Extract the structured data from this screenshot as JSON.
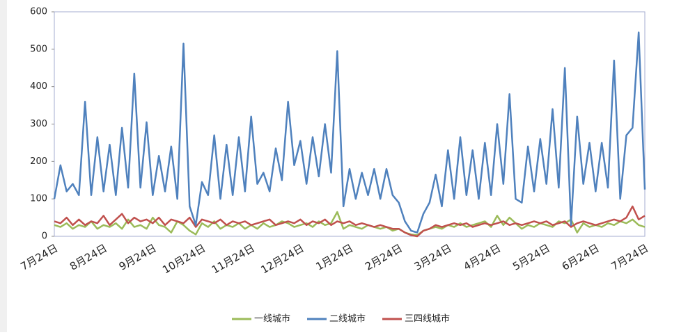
{
  "chart_data": {
    "type": "line",
    "categories": [
      "7月24日",
      null,
      null,
      null,
      null,
      null,
      null,
      null,
      "8月24日",
      null,
      null,
      null,
      null,
      null,
      null,
      null,
      "9月24日",
      null,
      null,
      null,
      null,
      null,
      null,
      null,
      "10月24日",
      null,
      null,
      null,
      null,
      null,
      null,
      null,
      "11月24日",
      null,
      null,
      null,
      null,
      null,
      null,
      null,
      "12月24日",
      null,
      null,
      null,
      null,
      null,
      null,
      null,
      "1月24日",
      null,
      null,
      null,
      null,
      null,
      null,
      null,
      "2月24日",
      null,
      null,
      null,
      null,
      null,
      null,
      null,
      "3月24日",
      null,
      null,
      null,
      null,
      null,
      null,
      null,
      "4月24日",
      null,
      null,
      null,
      null,
      null,
      null,
      null,
      "5月24日",
      null,
      null,
      null,
      null,
      null,
      null,
      null,
      "6月24日",
      null,
      null,
      null,
      null,
      null,
      null,
      null,
      "7月24日"
    ],
    "series": [
      {
        "name": "一线城市",
        "color": "#9bbb59",
        "values": [
          30,
          25,
          35,
          20,
          30,
          25,
          40,
          20,
          30,
          25,
          35,
          20,
          45,
          25,
          30,
          20,
          50,
          30,
          25,
          10,
          40,
          30,
          15,
          5,
          35,
          25,
          40,
          20,
          30,
          25,
          35,
          20,
          30,
          20,
          35,
          25,
          30,
          40,
          35,
          25,
          30,
          35,
          25,
          40,
          30,
          35,
          65,
          20,
          30,
          25,
          20,
          30,
          25,
          20,
          25,
          15,
          20,
          10,
          5,
          3,
          15,
          20,
          25,
          20,
          30,
          25,
          35,
          25,
          30,
          35,
          40,
          25,
          55,
          30,
          50,
          35,
          20,
          30,
          25,
          35,
          30,
          25,
          40,
          35,
          45,
          10,
          35,
          25,
          30,
          25,
          35,
          30,
          40,
          35,
          45,
          30,
          25
        ]
      },
      {
        "name": "二线城市",
        "color": "#4f81bd",
        "values": [
          100,
          190,
          120,
          140,
          110,
          360,
          110,
          265,
          120,
          245,
          110,
          290,
          130,
          435,
          130,
          305,
          110,
          215,
          120,
          240,
          100,
          515,
          80,
          30,
          145,
          110,
          270,
          100,
          245,
          110,
          265,
          120,
          320,
          140,
          170,
          120,
          235,
          150,
          360,
          190,
          255,
          140,
          265,
          160,
          300,
          170,
          495,
          80,
          180,
          100,
          170,
          110,
          180,
          100,
          180,
          110,
          90,
          40,
          15,
          10,
          60,
          90,
          165,
          80,
          230,
          100,
          265,
          110,
          230,
          100,
          250,
          110,
          300,
          140,
          380,
          100,
          90,
          240,
          120,
          260,
          140,
          340,
          130,
          450,
          30,
          320,
          140,
          250,
          120,
          250,
          130,
          470,
          100,
          270,
          290,
          545,
          125
        ]
      },
      {
        "name": "三四线城市",
        "color": "#c0504d",
        "values": [
          40,
          35,
          50,
          30,
          45,
          30,
          40,
          35,
          55,
          30,
          45,
          60,
          35,
          50,
          40,
          45,
          35,
          50,
          30,
          45,
          40,
          35,
          50,
          25,
          45,
          40,
          35,
          45,
          30,
          40,
          35,
          40,
          30,
          35,
          40,
          45,
          30,
          35,
          40,
          35,
          45,
          30,
          40,
          35,
          45,
          30,
          40,
          35,
          40,
          30,
          35,
          30,
          25,
          30,
          25,
          20,
          20,
          10,
          3,
          0,
          15,
          20,
          30,
          25,
          30,
          35,
          30,
          35,
          25,
          30,
          35,
          30,
          35,
          40,
          30,
          35,
          30,
          35,
          40,
          35,
          40,
          30,
          35,
          40,
          25,
          35,
          40,
          35,
          30,
          35,
          40,
          45,
          40,
          50,
          80,
          45,
          55
        ]
      }
    ],
    "ylim": [
      0,
      600
    ],
    "yticks": [
      0,
      100,
      200,
      300,
      400,
      500,
      600
    ],
    "legend": "bottom"
  }
}
